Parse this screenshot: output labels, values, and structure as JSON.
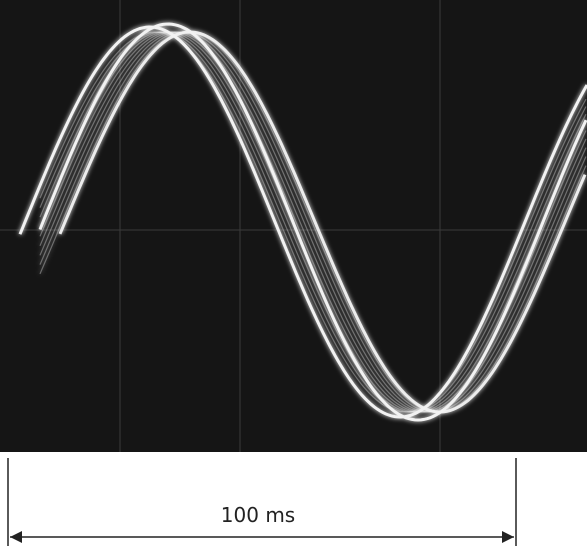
{
  "annotation": {
    "label": "100 ms"
  }
}
